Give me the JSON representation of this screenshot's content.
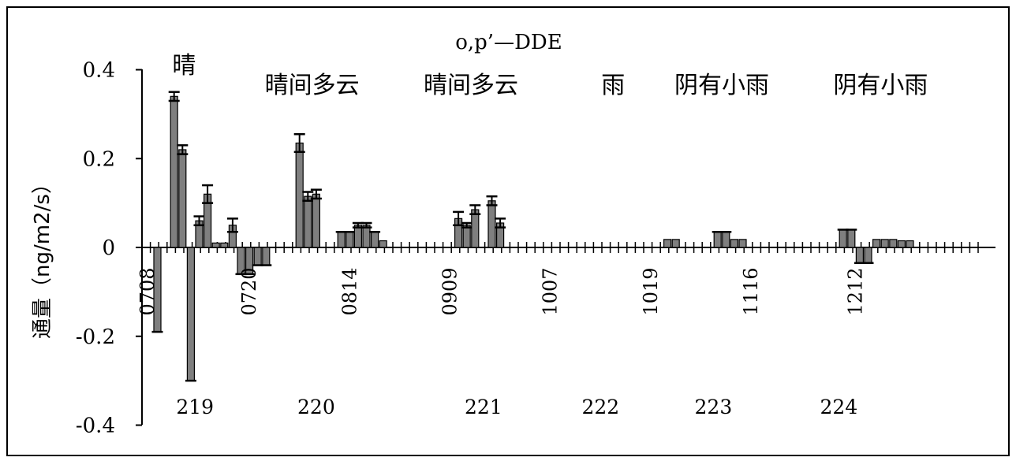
{
  "chart_data": {
    "type": "bar",
    "title": "o,p’—DDE",
    "ylabel": "通量（ng/m2/s）",
    "xlabel": "",
    "ylim": [
      -0.4,
      0.4
    ],
    "yticks": [
      "0.4",
      "0.2",
      "0",
      "-0.2",
      "-0.4"
    ],
    "ytick_values": [
      0.4,
      0.2,
      0,
      -0.2,
      -0.4
    ],
    "grid": false,
    "bar_color": "#7f7f7f",
    "weather_labels": [
      {
        "text": "晴",
        "slot": 3.2
      },
      {
        "text": "晴间多云",
        "slot": 18.5
      },
      {
        "text": "晴间多云",
        "slot": 37.5
      },
      {
        "text": "雨",
        "slot": 54.5
      },
      {
        "text": "阴有小雨",
        "slot": 67.5
      },
      {
        "text": "阴有小雨",
        "slot": 86.5
      }
    ],
    "date_labels": [
      {
        "text": "0708",
        "slot": -1.2
      },
      {
        "text": "0720",
        "slot": 11
      },
      {
        "text": "0814",
        "slot": 23
      },
      {
        "text": "0909",
        "slot": 35
      },
      {
        "text": "1007",
        "slot": 47
      },
      {
        "text": "1019",
        "slot": 59
      },
      {
        "text": "1116",
        "slot": 71
      },
      {
        "text": "1212",
        "slot": 83.5
      }
    ],
    "group_labels": [
      {
        "text": "219",
        "slot": 4.5
      },
      {
        "text": "220",
        "slot": 19
      },
      {
        "text": "221",
        "slot": 39
      },
      {
        "text": "222",
        "slot": 53
      },
      {
        "text": "223",
        "slot": 66.5
      },
      {
        "text": "224",
        "slot": 81.5
      }
    ],
    "bars": [
      {
        "slot": 0,
        "value": -0.19
      },
      {
        "slot": 2,
        "value": 0.34,
        "err": 0.01
      },
      {
        "slot": 3,
        "value": 0.22,
        "err": 0.01
      },
      {
        "slot": 4,
        "value": -0.3
      },
      {
        "slot": 5,
        "value": 0.06,
        "err": 0.01
      },
      {
        "slot": 6,
        "value": 0.12,
        "err": 0.02
      },
      {
        "slot": 7,
        "value": 0.01
      },
      {
        "slot": 8,
        "value": 0.01
      },
      {
        "slot": 9,
        "value": 0.05,
        "err": 0.015
      },
      {
        "slot": 10,
        "value": -0.06
      },
      {
        "slot": 11,
        "value": -0.06
      },
      {
        "slot": 12,
        "value": -0.04
      },
      {
        "slot": 13,
        "value": -0.04
      },
      {
        "slot": 17,
        "value": 0.235,
        "err": 0.02
      },
      {
        "slot": 18,
        "value": 0.115,
        "err": 0.01
      },
      {
        "slot": 19,
        "value": 0.12,
        "err": 0.01
      },
      {
        "slot": 22,
        "value": 0.035
      },
      {
        "slot": 23,
        "value": 0.035
      },
      {
        "slot": 24,
        "value": 0.05,
        "err": 0.005
      },
      {
        "slot": 25,
        "value": 0.05,
        "err": 0.005
      },
      {
        "slot": 26,
        "value": 0.035
      },
      {
        "slot": 27,
        "value": 0.015
      },
      {
        "slot": 36,
        "value": 0.065,
        "err": 0.015
      },
      {
        "slot": 37,
        "value": 0.05,
        "err": 0.005
      },
      {
        "slot": 38,
        "value": 0.085,
        "err": 0.01
      },
      {
        "slot": 40,
        "value": 0.105,
        "err": 0.01
      },
      {
        "slot": 41,
        "value": 0.055,
        "err": 0.01
      },
      {
        "slot": 61,
        "value": 0.018
      },
      {
        "slot": 62,
        "value": 0.018
      },
      {
        "slot": 67,
        "value": 0.035
      },
      {
        "slot": 68,
        "value": 0.035
      },
      {
        "slot": 69,
        "value": 0.018
      },
      {
        "slot": 70,
        "value": 0.018
      },
      {
        "slot": 82,
        "value": 0.04
      },
      {
        "slot": 83,
        "value": 0.04
      },
      {
        "slot": 84,
        "value": -0.035
      },
      {
        "slot": 85,
        "value": -0.035
      },
      {
        "slot": 86,
        "value": 0.018
      },
      {
        "slot": 87,
        "value": 0.018
      },
      {
        "slot": 88,
        "value": 0.018
      },
      {
        "slot": 89,
        "value": 0.015
      },
      {
        "slot": 90,
        "value": 0.015
      }
    ]
  }
}
